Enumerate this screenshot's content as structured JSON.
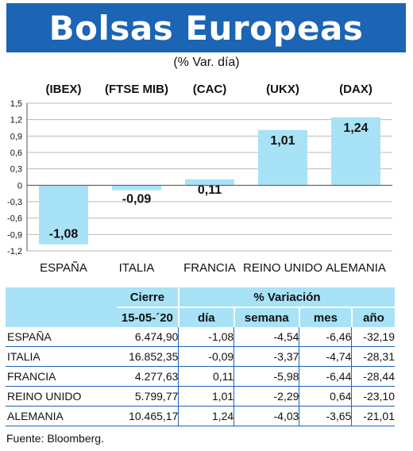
{
  "title": "Bolsas Europeas",
  "subtitle": "(% Var. día)",
  "chart_data": {
    "type": "bar",
    "categories": [
      "ESPAÑA",
      "ITALIA",
      "FRANCIA",
      "REINO UNIDO",
      "ALEMANIA"
    ],
    "index_labels": [
      "(IBEX)",
      "(FTSE MIB)",
      "(CAC)",
      "(UKX)",
      "(DAX)"
    ],
    "values": [
      -1.08,
      -0.09,
      0.11,
      1.01,
      1.24
    ],
    "value_labels": [
      "-1,08",
      "-0,09",
      "0,11",
      "1,01",
      "1,24"
    ],
    "ylim": [
      -1.2,
      1.5
    ],
    "yticks": [
      -1.2,
      -0.9,
      -0.6,
      -0.3,
      0,
      0.3,
      0.6,
      0.9,
      1.2,
      1.5
    ],
    "ytick_labels": [
      "-1,2",
      "-0,9",
      "-0,6",
      "-0,3",
      "0",
      "0,3",
      "0,6",
      "0,9",
      "1,2",
      "1,5"
    ],
    "grid": true,
    "bar_color": "#a8e2f6"
  },
  "table": {
    "header_cierre": "Cierre",
    "header_variacion": "% Variación",
    "date": "15-05-´20",
    "col_dia": "día",
    "col_semana": "semana",
    "col_mes": "mes",
    "col_ano": "año",
    "rows": [
      {
        "name": "ESPAÑA",
        "cierre": "6.474,90",
        "dia": "-1,08",
        "semana": "-4,54",
        "mes": "-6,46",
        "ano": "-32,19"
      },
      {
        "name": "ITALIA",
        "cierre": "16.852,35",
        "dia": "-0,09",
        "semana": "-3,37",
        "mes": "-4,74",
        "ano": "-28,31"
      },
      {
        "name": "FRANCIA",
        "cierre": "4.277,63",
        "dia": "0,11",
        "semana": "-5,98",
        "mes": "-6,44",
        "ano": "-28,44"
      },
      {
        "name": "REINO UNIDO",
        "cierre": "5.799,77",
        "dia": "1,01",
        "semana": "-2,29",
        "mes": "0,64",
        "ano": "-23,10"
      },
      {
        "name": "ALEMANIA",
        "cierre": "10.465,17",
        "dia": "1,24",
        "semana": "-4,03",
        "mes": "-3,65",
        "ano": "-21,01"
      }
    ]
  },
  "source": "Fuente: Bloomberg.",
  "colors": {
    "accent": "#1c64b4",
    "bar": "#a8e2f6"
  }
}
